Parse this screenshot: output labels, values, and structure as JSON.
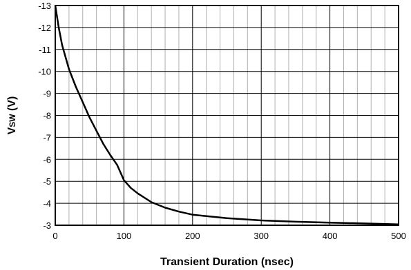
{
  "chart_data": {
    "type": "line",
    "title": "",
    "xlabel": "Transient Duration (nsec)",
    "ylabel": "VSW (V)",
    "ylabel_parts": {
      "main": "V",
      "sub": "SW",
      "unit": " (V)"
    },
    "xlim": [
      0,
      500
    ],
    "ylim": [
      -3,
      -13
    ],
    "y_axis_inverted": true,
    "x_major_ticks": [
      0,
      100,
      200,
      300,
      400,
      500
    ],
    "x_tick_labels": [
      "0",
      "100",
      "200",
      "300",
      "400",
      "500"
    ],
    "x_minor_step": 20,
    "y_ticks": [
      -13,
      -12,
      -11,
      -10,
      -9,
      -8,
      -7,
      -6,
      -5,
      -4,
      -3
    ],
    "y_tick_labels": [
      "-13",
      "-12",
      "-11",
      "-10",
      "-9",
      "-8",
      "-7",
      "-6",
      "-5",
      "-4",
      "-3"
    ],
    "grid": true,
    "legend": "none",
    "series": [
      {
        "color": "#000000",
        "x": [
          0,
          5,
          10,
          20,
          30,
          40,
          50,
          60,
          70,
          80,
          90,
          100,
          110,
          120,
          140,
          160,
          180,
          200,
          250,
          300,
          350,
          400,
          450,
          500
        ],
        "y": [
          -13.0,
          -12.0,
          -11.2,
          -10.1,
          -9.3,
          -8.6,
          -7.9,
          -7.3,
          -6.7,
          -6.2,
          -5.75,
          -5.05,
          -4.7,
          -4.45,
          -4.05,
          -3.8,
          -3.62,
          -3.48,
          -3.32,
          -3.22,
          -3.16,
          -3.12,
          -3.08,
          -3.04
        ]
      }
    ]
  }
}
